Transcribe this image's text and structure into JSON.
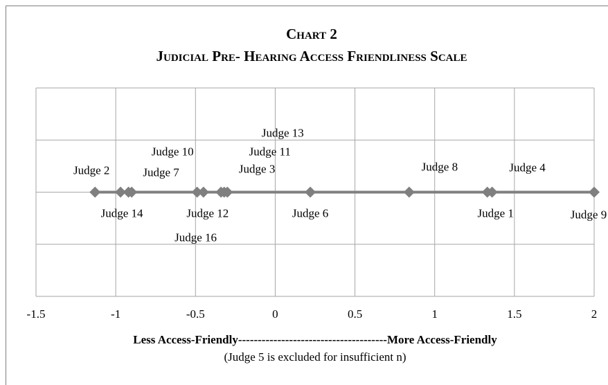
{
  "chart_data": {
    "type": "scatter",
    "title": "Chart 2",
    "subtitle": "Judicial Pre- Hearing Access Friendliness Scale",
    "x_label": "Less Access-Friendly--------------------------------------More  Access-Friendly",
    "note": "(Judge 5 is excluded for insufficient  n)",
    "xlim": [
      -1.5,
      2
    ],
    "xticks": [
      -1.5,
      -1,
      -0.5,
      0,
      0.5,
      1,
      1.5,
      2
    ],
    "ylim": [
      -2,
      2
    ],
    "yticks": [
      -2,
      -1,
      0,
      1,
      2
    ],
    "ytick_labels": false,
    "grid": true,
    "series": [
      {
        "color": "#7f7f7f",
        "marker": "diamond",
        "x": [
          -1.13,
          -0.97,
          -0.92,
          -0.9,
          -0.49,
          -0.45,
          -0.34,
          -0.32,
          -0.3,
          0.22,
          0.84,
          1.33,
          1.36,
          2.0
        ],
        "values": [
          0,
          0,
          0,
          0,
          0,
          0,
          0,
          0,
          0,
          0,
          0,
          0,
          0,
          0
        ],
        "labels": [
          "Judge 2",
          "Judge 14",
          "Judge 7",
          "Judge 10",
          "Judge 16",
          "Judge 12",
          "Judge 3",
          "Judge 11",
          "Judge 13",
          "Judge 6",
          "Judge 8",
          "Judge 1",
          "Judge 4",
          "Judge 9"
        ]
      }
    ]
  }
}
